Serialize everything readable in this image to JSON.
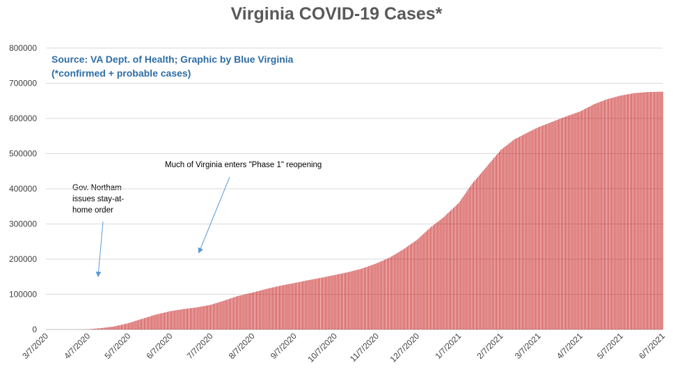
{
  "chart_data": {
    "type": "bar",
    "title": "Virginia COVID-19 Cases*",
    "source_line_1": "Source: VA Dept. of Health; Graphic by Blue Virginia",
    "source_line_2": "(*confirmed + probable cases)",
    "xlabel": "",
    "ylabel": "",
    "ylim": [
      0,
      800000
    ],
    "y_ticks": [
      "0",
      "100000",
      "200000",
      "300000",
      "400000",
      "500000",
      "600000",
      "700000",
      "800000"
    ],
    "x_tick_labels": [
      "3/7/2020",
      "4/7/2020",
      "5/7/2020",
      "6/7/2020",
      "7/7/2020",
      "8/7/2020",
      "9/7/2020",
      "10/7/2020",
      "11/7/2020",
      "12/7/2020",
      "1/7/2021",
      "2/7/2021",
      "3/7/2021",
      "4/7/2021",
      "5/7/2021",
      "6/7/2021"
    ],
    "grid": true,
    "bar_color": "#c00000",
    "x": [
      "3/7/2020",
      "3/17/2020",
      "3/27/2020",
      "4/7/2020",
      "4/17/2020",
      "4/27/2020",
      "5/7/2020",
      "5/17/2020",
      "5/27/2020",
      "6/7/2020",
      "6/17/2020",
      "6/27/2020",
      "7/7/2020",
      "7/17/2020",
      "7/27/2020",
      "8/7/2020",
      "8/17/2020",
      "8/27/2020",
      "9/7/2020",
      "9/17/2020",
      "9/27/2020",
      "10/7/2020",
      "10/17/2020",
      "10/27/2020",
      "11/7/2020",
      "11/17/2020",
      "11/27/2020",
      "12/7/2020",
      "12/17/2020",
      "12/27/2020",
      "1/7/2021",
      "1/17/2021",
      "1/27/2021",
      "2/7/2021",
      "2/17/2021",
      "2/27/2021",
      "3/7/2021",
      "3/17/2021",
      "3/27/2021",
      "4/7/2021",
      "4/17/2021",
      "4/27/2021",
      "5/7/2021",
      "5/17/2021",
      "5/27/2021",
      "6/7/2021"
    ],
    "values": [
      0,
      0,
      0,
      500,
      4000,
      9000,
      18000,
      30000,
      42000,
      52000,
      58000,
      63000,
      70000,
      82000,
      95000,
      105000,
      115000,
      124000,
      132000,
      140000,
      147000,
      155000,
      163000,
      173000,
      188000,
      205000,
      228000,
      255000,
      290000,
      320000,
      360000,
      415000,
      460000,
      510000,
      540000,
      560000,
      575000,
      590000,
      605000,
      620000,
      640000,
      655000,
      665000,
      672000,
      675000,
      676000
    ],
    "annotations": [
      {
        "text": "Gov. Northam issues stay-at- home order",
        "lines": [
          "Gov. Northam",
          "issues stay-at-",
          "home order"
        ],
        "anchor_date": "3/30/2020",
        "anchor_value": 150000
      },
      {
        "text": "Much of Virginia enters \"Phase 1\" reopening",
        "anchor_date": "5/15/2020",
        "anchor_value": 220000
      }
    ]
  }
}
